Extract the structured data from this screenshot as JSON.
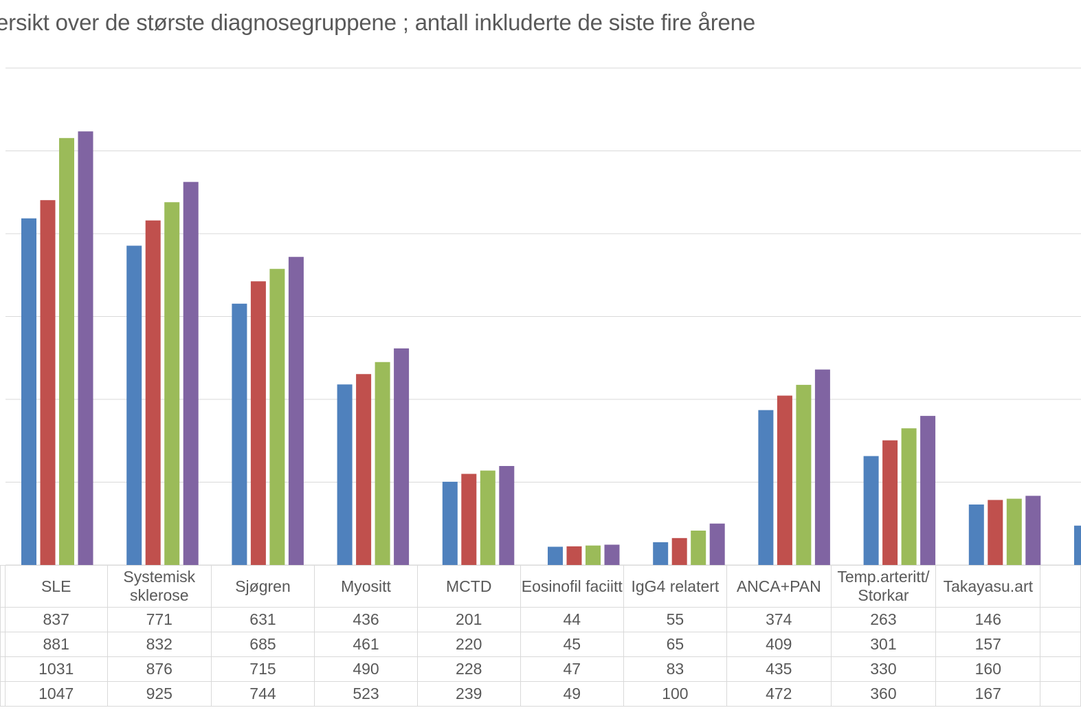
{
  "chart_data": {
    "type": "bar",
    "title": "ersikt over de største diagnosegruppene ; antall  inkluderte   de siste fire årene",
    "categories": [
      "SLE",
      "Systemisk sklerose",
      "Sjøgren",
      "Myositt",
      "MCTD",
      "Eosinofil faciitt",
      "IgG4 relatert",
      "ANCA+PAN",
      "Temp.arteritt/ Storkar",
      "Takayasu.art"
    ],
    "series": [
      {
        "color": "#4f81bd",
        "values": [
          837,
          771,
          631,
          436,
          201,
          44,
          55,
          374,
          263,
          146
        ]
      },
      {
        "color": "#c0504d",
        "values": [
          881,
          832,
          685,
          461,
          220,
          45,
          65,
          409,
          301,
          157
        ]
      },
      {
        "color": "#9bbb59",
        "values": [
          1031,
          876,
          715,
          490,
          228,
          47,
          83,
          435,
          330,
          160
        ]
      },
      {
        "color": "#8064a2",
        "values": [
          1047,
          925,
          744,
          523,
          239,
          49,
          100,
          472,
          360,
          167
        ]
      }
    ],
    "ylim": [
      0,
      1200
    ],
    "gridlines": true,
    "partial_category_bar": {
      "color": "#4f81bd",
      "value": 95
    }
  }
}
